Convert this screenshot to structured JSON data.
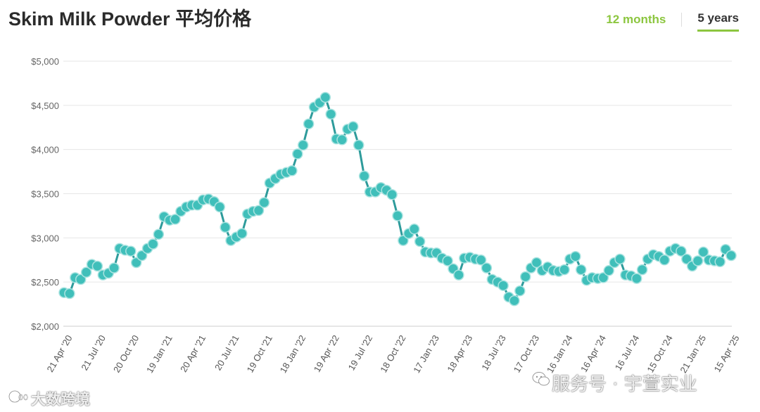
{
  "header": {
    "title": "Skim Milk Powder 平均价格",
    "tabs": [
      {
        "label": "12 months",
        "active": false
      },
      {
        "label": "5 years",
        "active": true
      }
    ]
  },
  "colors": {
    "line": "#2e9b9b",
    "marker_fill": "#40bfba",
    "accent": "#8cc63f"
  },
  "watermarks": {
    "wm1": "服务号 · 宇萱实业",
    "wm2": "大数跨境"
  },
  "chart_data": {
    "type": "line",
    "ylim": [
      2000,
      5000
    ],
    "yticks": [
      "$2,000",
      "$2,500",
      "$3,000",
      "$3,500",
      "$4,000",
      "$4,500",
      "$5,000"
    ],
    "ytick_values": [
      2000,
      2500,
      3000,
      3500,
      4000,
      4500,
      5000
    ],
    "xticks": [
      "21 Apr '20",
      "21 Jul '20",
      "20 Oct '20",
      "19 Jan '21",
      "20 Apr '21",
      "20 Jul '21",
      "19 Oct '21",
      "18 Jan '22",
      "19 Apr '22",
      "19 Jul '22",
      "18 Oct '22",
      "17 Jan '23",
      "18 Apr '23",
      "18 Jul '23",
      "17 Oct '23",
      "16 Jan '24",
      "16 Apr '24",
      "16 Jul '24",
      "15 Oct '24",
      "21 Jan '25",
      "15 Apr '25"
    ],
    "xtick_index": [
      0,
      6,
      12,
      18,
      24,
      30,
      36,
      42,
      48,
      54,
      60,
      66,
      72,
      78,
      84,
      90,
      96,
      102,
      108,
      114,
      120
    ],
    "grid": true,
    "series": [
      {
        "values": [
          2380,
          2370,
          2550,
          2530,
          2610,
          2700,
          2680,
          2580,
          2600,
          2660,
          2880,
          2860,
          2850,
          2720,
          2800,
          2880,
          2930,
          3040,
          3240,
          3200,
          3210,
          3300,
          3350,
          3370,
          3370,
          3430,
          3440,
          3410,
          3350,
          3120,
          2970,
          3010,
          3050,
          3270,
          3300,
          3310,
          3400,
          3620,
          3670,
          3720,
          3740,
          3760,
          3950,
          4050,
          4290,
          4480,
          4530,
          4590,
          4400,
          4120,
          4110,
          4230,
          4260,
          4050,
          3700,
          3520,
          3520,
          3570,
          3540,
          3490,
          3250,
          2970,
          3050,
          3100,
          2960,
          2840,
          2830,
          2830,
          2770,
          2740,
          2650,
          2580,
          2770,
          2780,
          2760,
          2750,
          2660,
          2530,
          2500,
          2460,
          2330,
          2290,
          2400,
          2560,
          2660,
          2720,
          2630,
          2670,
          2630,
          2620,
          2640,
          2760,
          2790,
          2640,
          2520,
          2550,
          2540,
          2550,
          2630,
          2720,
          2760,
          2580,
          2570,
          2540,
          2640,
          2760,
          2810,
          2790,
          2750,
          2850,
          2880,
          2850,
          2760,
          2680,
          2740,
          2840,
          2750,
          2740,
          2730,
          2870,
          2800
        ]
      }
    ]
  }
}
